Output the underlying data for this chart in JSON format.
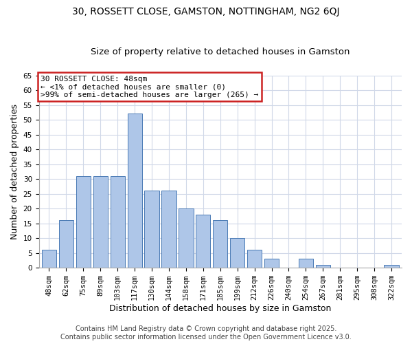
{
  "title": "30, ROSSETT CLOSE, GAMSTON, NOTTINGHAM, NG2 6QJ",
  "subtitle": "Size of property relative to detached houses in Gamston",
  "bar_labels": [
    "48sqm",
    "62sqm",
    "75sqm",
    "89sqm",
    "103sqm",
    "117sqm",
    "130sqm",
    "144sqm",
    "158sqm",
    "171sqm",
    "185sqm",
    "199sqm",
    "212sqm",
    "226sqm",
    "240sqm",
    "254sqm",
    "267sqm",
    "281sqm",
    "295sqm",
    "308sqm",
    "322sqm"
  ],
  "bar_values": [
    6,
    16,
    31,
    31,
    31,
    52,
    26,
    26,
    20,
    18,
    16,
    10,
    6,
    3,
    0,
    3,
    1,
    0,
    0,
    0,
    1
  ],
  "bar_color": "#aec6e8",
  "bar_edge_color": "#4a7ab5",
  "ylim": [
    0,
    65
  ],
  "yticks": [
    0,
    5,
    10,
    15,
    20,
    25,
    30,
    35,
    40,
    45,
    50,
    55,
    60,
    65
  ],
  "ylabel": "Number of detached properties",
  "xlabel": "Distribution of detached houses by size in Gamston",
  "annotation_title": "30 ROSSETT CLOSE: 48sqm",
  "annotation_line1": "← <1% of detached houses are smaller (0)",
  "annotation_line2": ">99% of semi-detached houses are larger (265) →",
  "annotation_box_color": "#ffffff",
  "annotation_box_edge_color": "#cc2222",
  "footer1": "Contains HM Land Registry data © Crown copyright and database right 2025.",
  "footer2": "Contains public sector information licensed under the Open Government Licence v3.0.",
  "background_color": "#ffffff",
  "plot_bg_color": "#ffffff",
  "grid_color": "#d0d8e8",
  "title_fontsize": 10,
  "subtitle_fontsize": 9.5,
  "axis_label_fontsize": 9,
  "tick_fontsize": 7.5,
  "footer_fontsize": 7
}
